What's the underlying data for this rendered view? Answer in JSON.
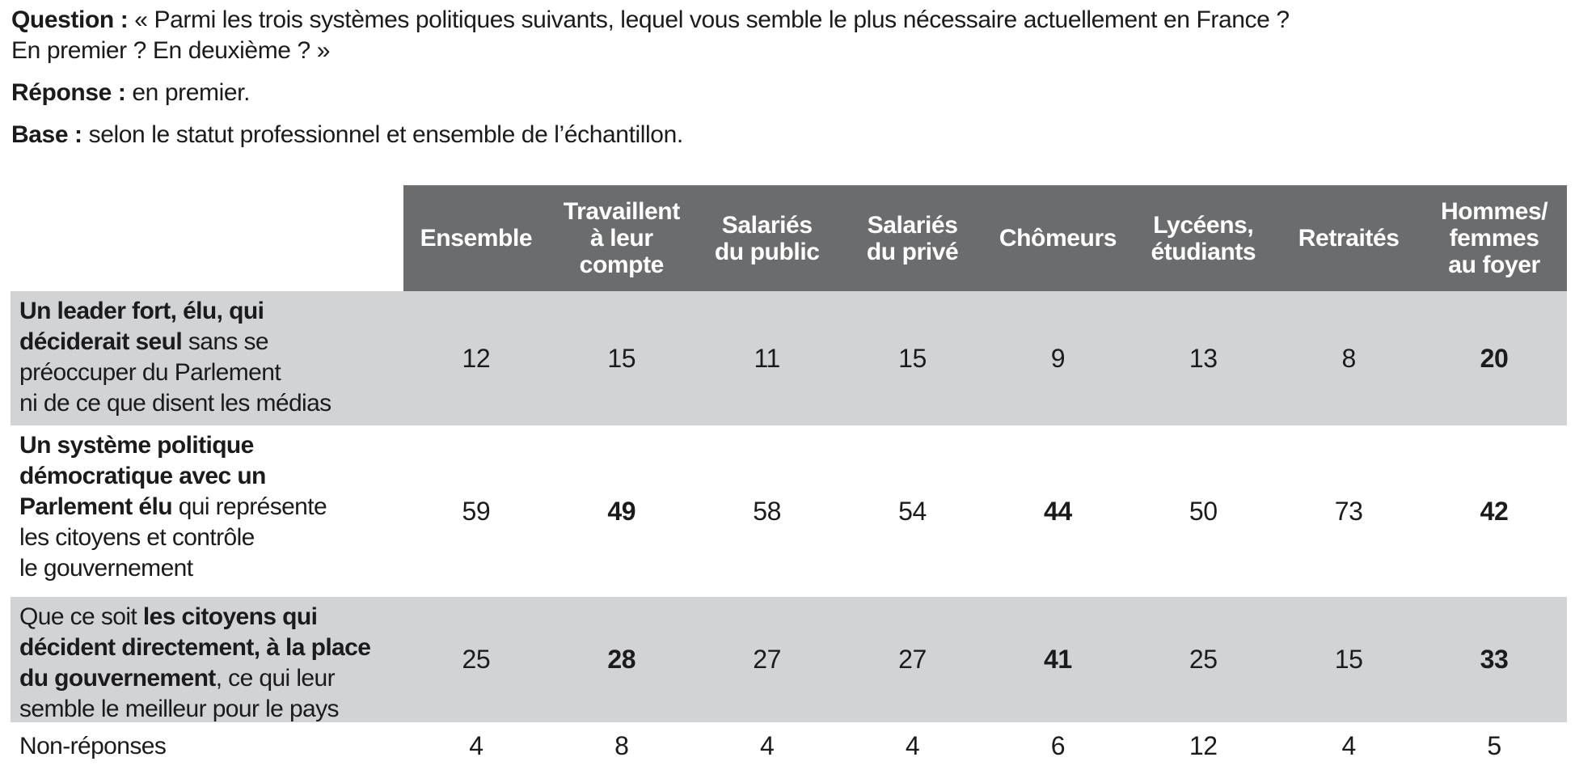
{
  "intro": {
    "question_label": "Question :",
    "question_line1": "« Parmi les trois systèmes politiques suivants, lequel vous semble le plus nécessaire actuellement en France ?",
    "question_line2": "En premier ? En deuxième ? »",
    "reponse_label": "Réponse :",
    "reponse_text": "en premier.",
    "base_label": "Base :",
    "base_text": "selon le statut professionnel et ensemble de l’échantillon."
  },
  "table": {
    "columns": [
      "Ensemble",
      "Travaillent\nà leur\ncompte",
      "Salariés\ndu public",
      "Salariés\ndu privé",
      "Chômeurs",
      "Lycéens,\nétudiants",
      "Retraités",
      "Hommes/\nfemmes\nau foyer"
    ],
    "rows": [
      {
        "label_bold": "Un leader fort, élu, qui\ndéciderait seul",
        "label_rest": " sans se\npréoccuper du Parlement\nni de ce que disent les médias",
        "shaded": true,
        "values": [
          {
            "v": "12",
            "bold": false
          },
          {
            "v": "15",
            "bold": false
          },
          {
            "v": "11",
            "bold": false
          },
          {
            "v": "15",
            "bold": false
          },
          {
            "v": "9",
            "bold": false
          },
          {
            "v": "13",
            "bold": false
          },
          {
            "v": "8",
            "bold": false
          },
          {
            "v": "20",
            "bold": true
          }
        ]
      },
      {
        "label_bold": "Un système politique\ndémocratique avec un\nParlement élu",
        "label_rest": " qui représente\nles citoyens et contrôle\nle gouvernement",
        "shaded": false,
        "values": [
          {
            "v": "59",
            "bold": false
          },
          {
            "v": "49",
            "bold": true
          },
          {
            "v": "58",
            "bold": false
          },
          {
            "v": "54",
            "bold": false
          },
          {
            "v": "44",
            "bold": true
          },
          {
            "v": "50",
            "bold": false
          },
          {
            "v": "73",
            "bold": false
          },
          {
            "v": "42",
            "bold": true
          }
        ]
      },
      {
        "label_pre": "Que ce soit ",
        "label_bold": "les citoyens qui\ndécident directement, à la place\ndu gouvernement",
        "label_rest": ", ce qui leur\nsemble le meilleur pour le pays",
        "shaded": true,
        "values": [
          {
            "v": "25",
            "bold": false
          },
          {
            "v": "28",
            "bold": true
          },
          {
            "v": "27",
            "bold": false
          },
          {
            "v": "27",
            "bold": false
          },
          {
            "v": "41",
            "bold": true
          },
          {
            "v": "25",
            "bold": false
          },
          {
            "v": "15",
            "bold": false
          },
          {
            "v": "33",
            "bold": true
          }
        ]
      },
      {
        "label_rest": "Non-réponses",
        "shaded": false,
        "values": [
          {
            "v": "4",
            "bold": false
          },
          {
            "v": "8",
            "bold": false
          },
          {
            "v": "4",
            "bold": false
          },
          {
            "v": "4",
            "bold": false
          },
          {
            "v": "6",
            "bold": false
          },
          {
            "v": "12",
            "bold": false
          },
          {
            "v": "4",
            "bold": false
          },
          {
            "v": "5",
            "bold": false
          }
        ]
      }
    ]
  },
  "colors": {
    "header_bg": "#6b6c6e",
    "header_text": "#ffffff",
    "row_shade": "#d2d3d4",
    "body_text": "#1b1b1d",
    "page_bg": "#ffffff"
  }
}
